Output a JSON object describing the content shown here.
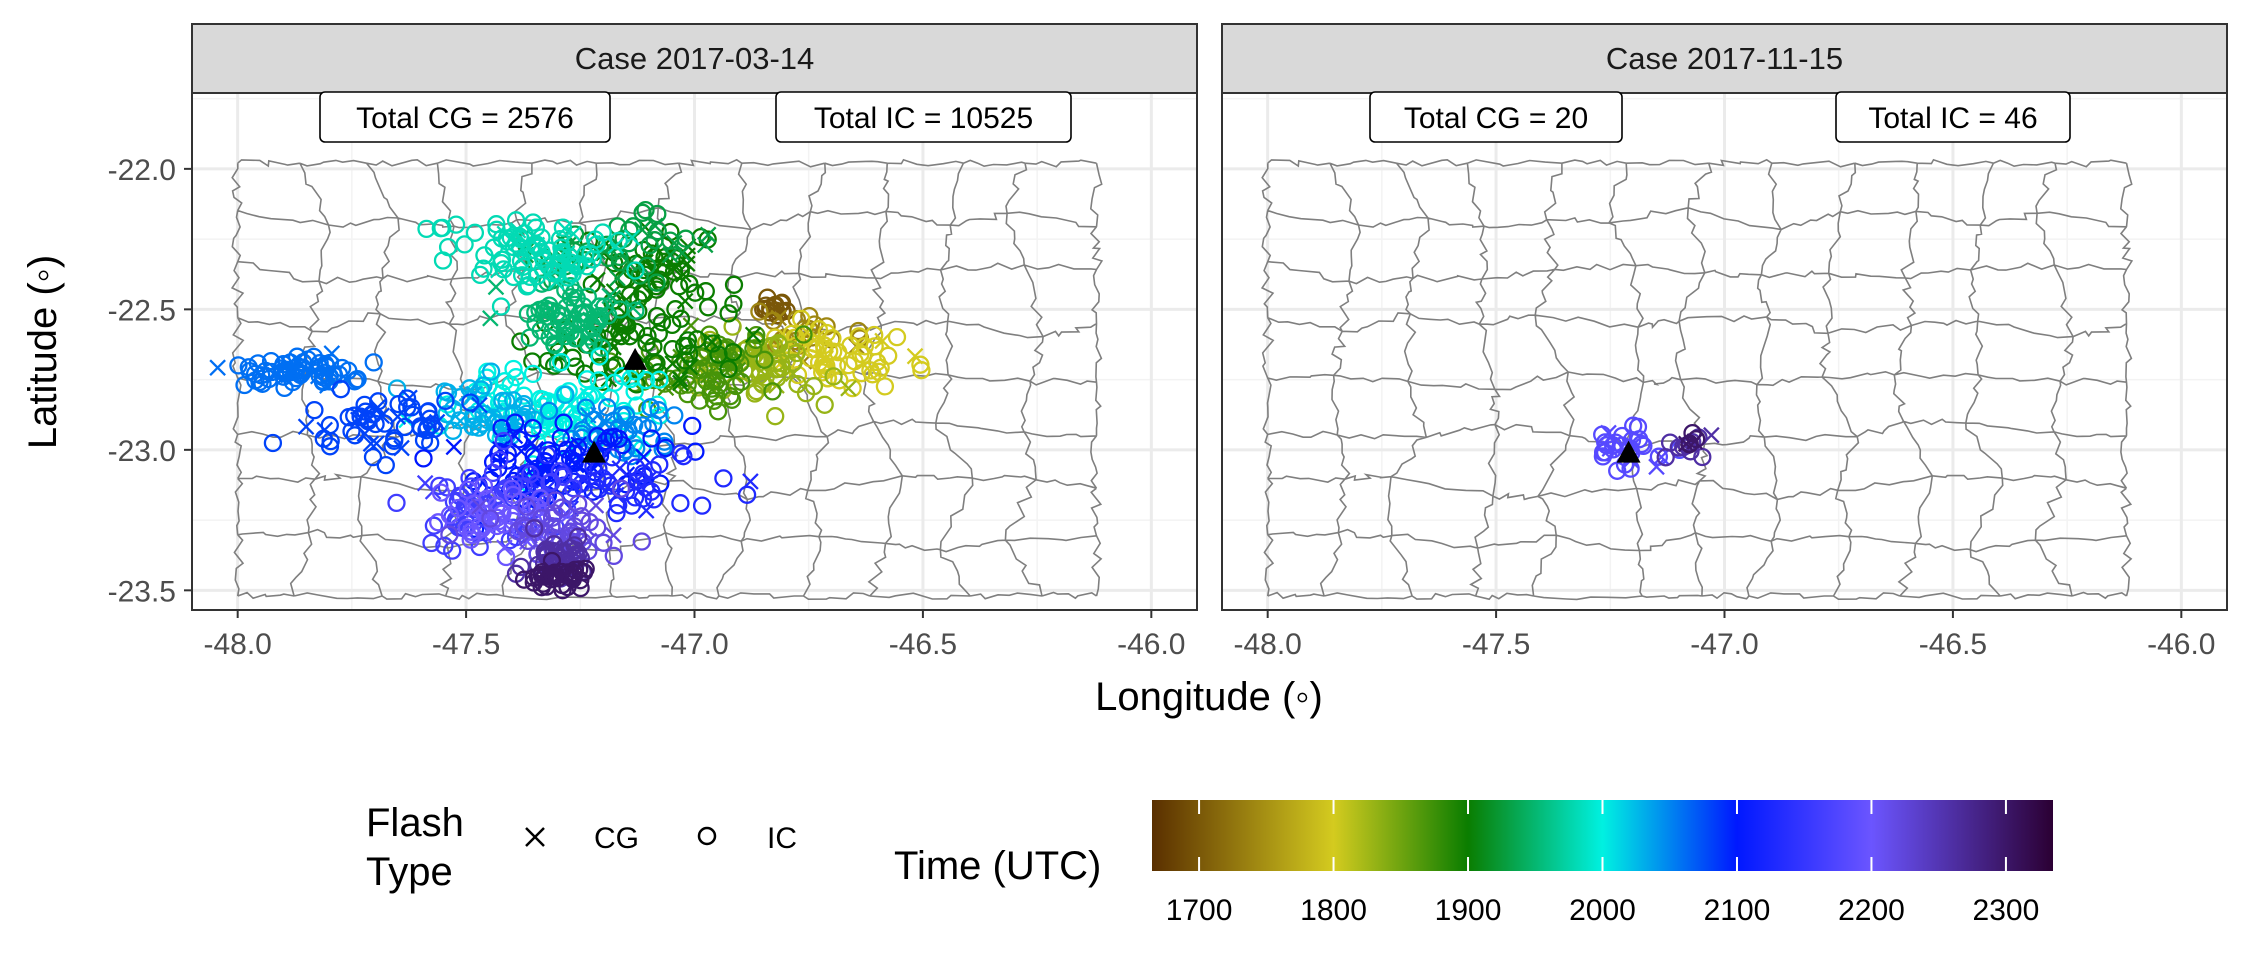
{
  "chart_data": {
    "type": "scatter",
    "xlabel": "Longitude (◦)",
    "ylabel": "Latitude (◦)",
    "xlim": [
      -48.1,
      -45.9
    ],
    "ylim": [
      -23.57,
      -21.73
    ],
    "x_ticks": [
      "-48.0",
      "-47.5",
      "-47.0",
      "-46.5",
      "-46.0"
    ],
    "y_ticks": [
      "-22.0",
      "-22.5",
      "-23.0",
      "-23.5"
    ],
    "grid": true,
    "facets": [
      {
        "title": "Case 2017-03-14",
        "annotations": [
          "Total CG = 2576",
          "Total IC = 10525"
        ],
        "markers": [
          {
            "lon": -47.13,
            "lat": -22.68
          },
          {
            "lon": -47.22,
            "lat": -23.01
          }
        ],
        "clusters": [
          {
            "time": 1700,
            "lon": -46.82,
            "lat": -22.5,
            "slon": 0.02,
            "slat": 0.02,
            "n": 16,
            "cg": 0.1
          },
          {
            "time": 1740,
            "lon": -46.78,
            "lat": -22.6,
            "slon": 0.05,
            "slat": 0.04,
            "n": 24,
            "cg": 0.1
          },
          {
            "time": 1800,
            "lon": -46.68,
            "lat": -22.68,
            "slon": 0.07,
            "slat": 0.05,
            "n": 60,
            "cg": 0.1
          },
          {
            "time": 1830,
            "lon": -46.85,
            "lat": -22.7,
            "slon": 0.07,
            "slat": 0.06,
            "n": 60,
            "cg": 0.1
          },
          {
            "time": 1870,
            "lon": -47.0,
            "lat": -22.72,
            "slon": 0.08,
            "slat": 0.07,
            "n": 70,
            "cg": 0.15
          },
          {
            "time": 1900,
            "lon": -47.08,
            "lat": -22.38,
            "slon": 0.09,
            "slat": 0.07,
            "n": 60,
            "cg": 0.2
          },
          {
            "time": 1900,
            "lon": -47.15,
            "lat": -22.62,
            "slon": 0.12,
            "slat": 0.07,
            "n": 70,
            "cg": 0.15
          },
          {
            "time": 1930,
            "lon": -47.2,
            "lat": -22.3,
            "slon": 0.1,
            "slat": 0.06,
            "n": 50,
            "cg": 0.2
          },
          {
            "time": 1950,
            "lon": -47.28,
            "lat": -22.55,
            "slon": 0.08,
            "slat": 0.06,
            "n": 70,
            "cg": 0.15
          },
          {
            "time": 1980,
            "lon": -47.35,
            "lat": -22.3,
            "slon": 0.09,
            "slat": 0.06,
            "n": 90,
            "cg": 0.1
          },
          {
            "time": 2000,
            "lon": -47.3,
            "lat": -22.85,
            "slon": 0.11,
            "slat": 0.07,
            "n": 90,
            "cg": 0.1
          },
          {
            "time": 2030,
            "lon": -47.45,
            "lat": -22.88,
            "slon": 0.07,
            "slat": 0.05,
            "n": 50,
            "cg": 0.1
          },
          {
            "time": 2050,
            "lon": -47.18,
            "lat": -22.92,
            "slon": 0.06,
            "slat": 0.05,
            "n": 40,
            "cg": 0.15
          },
          {
            "time": 2060,
            "lon": -47.88,
            "lat": -22.72,
            "slon": 0.07,
            "slat": 0.03,
            "n": 70,
            "cg": 0.12
          },
          {
            "time": 2080,
            "lon": -47.68,
            "lat": -22.9,
            "slon": 0.09,
            "slat": 0.06,
            "n": 60,
            "cg": 0.15
          },
          {
            "time": 2100,
            "lon": -47.3,
            "lat": -23.05,
            "slon": 0.12,
            "slat": 0.07,
            "n": 90,
            "cg": 0.15
          },
          {
            "time": 2130,
            "lon": -47.15,
            "lat": -23.12,
            "slon": 0.1,
            "slat": 0.06,
            "n": 50,
            "cg": 0.2
          },
          {
            "time": 2160,
            "lon": -47.45,
            "lat": -23.18,
            "slon": 0.1,
            "slat": 0.08,
            "n": 70,
            "cg": 0.15
          },
          {
            "time": 2200,
            "lon": -47.42,
            "lat": -23.25,
            "slon": 0.07,
            "slat": 0.05,
            "n": 50,
            "cg": 0.1
          },
          {
            "time": 2220,
            "lon": -47.28,
            "lat": -23.3,
            "slon": 0.07,
            "slat": 0.06,
            "n": 50,
            "cg": 0.1
          },
          {
            "time": 2260,
            "lon": -47.3,
            "lat": -23.38,
            "slon": 0.04,
            "slat": 0.03,
            "n": 40,
            "cg": 0.05
          },
          {
            "time": 2300,
            "lon": -47.3,
            "lat": -23.45,
            "slon": 0.03,
            "slat": 0.02,
            "n": 40,
            "cg": 0.03
          }
        ]
      },
      {
        "title": "Case 2017-11-15",
        "annotations": [
          "Total CG = 20",
          "Total IC = 46"
        ],
        "markers": [
          {
            "lon": -47.21,
            "lat": -23.01
          }
        ],
        "clusters": [
          {
            "time": 2180,
            "lon": -47.22,
            "lat": -23.0,
            "slon": 0.045,
            "slat": 0.035,
            "n": 30,
            "cg": 0.25
          },
          {
            "time": 2260,
            "lon": -47.1,
            "lat": -22.99,
            "slon": 0.03,
            "slat": 0.02,
            "n": 10,
            "cg": 0.2
          },
          {
            "time": 2300,
            "lon": -47.07,
            "lat": -22.97,
            "slon": 0.015,
            "slat": 0.015,
            "n": 6,
            "cg": 0.1
          }
        ]
      }
    ]
  },
  "legend": {
    "flash_title_line1": "Flash",
    "flash_title_line2": "Type",
    "cg_label": "CG",
    "ic_label": "IC",
    "time_title": "Time (UTC)",
    "time_ticks": [
      "1700",
      "1800",
      "1900",
      "2000",
      "2100",
      "2200",
      "2300"
    ],
    "time_range": [
      1665,
      2335
    ],
    "color_stops": [
      {
        "t": 1665,
        "c": "#5a2f00"
      },
      {
        "t": 1800,
        "c": "#d4cb1f"
      },
      {
        "t": 1900,
        "c": "#0a7d00"
      },
      {
        "t": 2000,
        "c": "#00f1e1"
      },
      {
        "t": 2100,
        "c": "#0018ff"
      },
      {
        "t": 2200,
        "c": "#6b55ff"
      },
      {
        "t": 2335,
        "c": "#2b0033"
      }
    ]
  }
}
